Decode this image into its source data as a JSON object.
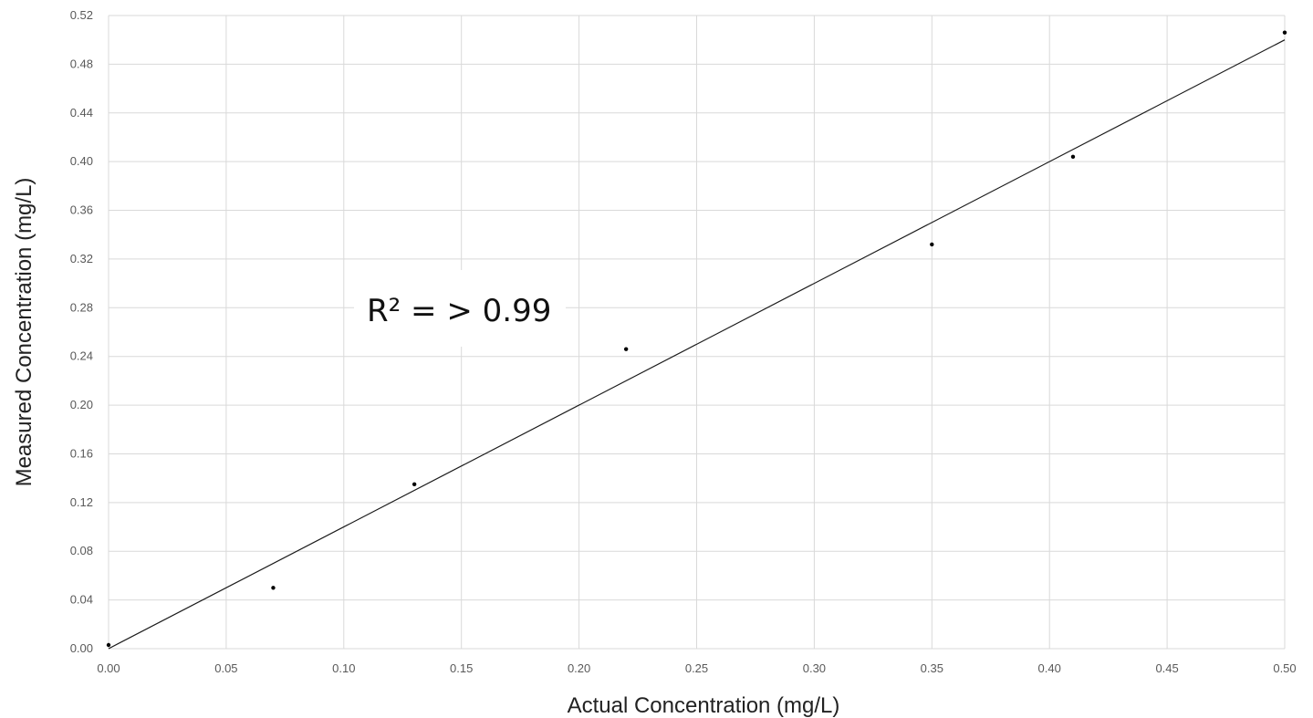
{
  "chart_data": {
    "type": "scatter",
    "title": "",
    "xlabel": "Actual Concentration (mg/L)",
    "ylabel": "Measured Concentration (mg/L)",
    "xlim": [
      0,
      0.5
    ],
    "ylim": [
      0,
      0.52
    ],
    "x_ticks": [
      "0.00",
      "0.05",
      "0.10",
      "0.15",
      "0.20",
      "0.25",
      "0.30",
      "0.35",
      "0.40",
      "0.45",
      "0.50"
    ],
    "y_ticks": [
      "0.00",
      "0.04",
      "0.08",
      "0.12",
      "0.16",
      "0.20",
      "0.24",
      "0.28",
      "0.32",
      "0.36",
      "0.40",
      "0.44",
      "0.48",
      "0.52"
    ],
    "grid": true,
    "points": [
      {
        "x": 0.0,
        "y": 0.003
      },
      {
        "x": 0.07,
        "y": 0.05
      },
      {
        "x": 0.13,
        "y": 0.135
      },
      {
        "x": 0.22,
        "y": 0.246
      },
      {
        "x": 0.35,
        "y": 0.332
      },
      {
        "x": 0.41,
        "y": 0.404
      },
      {
        "x": 0.5,
        "y": 0.506
      }
    ],
    "trendline": {
      "x": [
        0,
        0.5
      ],
      "y": [
        0,
        0.5
      ]
    },
    "annotation": "R² = > 0.99"
  }
}
